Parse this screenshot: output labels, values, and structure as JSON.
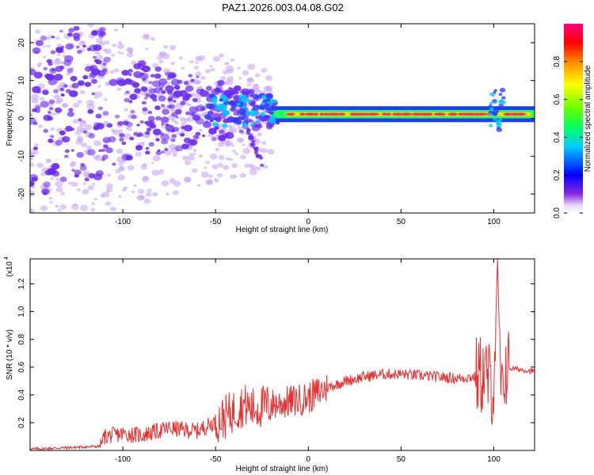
{
  "title": "PAZ1.2026.003.04.08.G02",
  "colors": {
    "spectrogram_dots": "#6a2bf0",
    "spectrogram_light": "#c8a8f5",
    "snr_line": "#e83030"
  },
  "colorbar": {
    "label": "Normalized spectral amplitude",
    "ticks": [
      "0.0",
      "0.2",
      "0.4",
      "0.6",
      "0.8"
    ],
    "tick_values": [
      0.0,
      0.2,
      0.4,
      0.6,
      0.8
    ],
    "range": [
      0,
      1
    ],
    "colormap": "rainbow (purple-blue-cyan-green-yellow-red-magenta)"
  },
  "chart_data": [
    {
      "type": "heatmap",
      "xlabel": "Height of straight line (km)",
      "ylabel": "Frequency (Hz)",
      "xlim": [
        -150,
        122
      ],
      "ylim": [
        -25,
        25
      ],
      "xticks": [
        -100,
        -50,
        0,
        50,
        100
      ],
      "xtick_labels": [
        "-100",
        "-50",
        "0",
        "50",
        "100"
      ],
      "yticks": [
        -20,
        -10,
        0,
        10,
        20
      ],
      "ytick_labels": [
        "-20",
        "-10",
        "0",
        "10",
        "20"
      ],
      "features": [
        {
          "x_range": [
            -150,
            -110
          ],
          "freq_range": [
            -25,
            25
          ],
          "amplitude": 0.05
        },
        {
          "x_range": [
            -110,
            -20
          ],
          "freq_range": [
            -12,
            15
          ],
          "amplitude": 0.1
        },
        {
          "x_range": [
            -55,
            -20
          ],
          "freq_center": 2,
          "amplitude": 0.25
        },
        {
          "x_range": [
            -20,
            122
          ],
          "freq_center": 1,
          "amplitude": 0.95
        },
        {
          "x_range": [
            98,
            106
          ],
          "freq_range": [
            -3,
            8
          ],
          "amplitude": 0.3
        }
      ]
    },
    {
      "type": "line",
      "xlabel": "Height of straight line (km)",
      "ylabel": "SNR (10 * v/v)",
      "y_multiplier": "(x10",
      "y_multiplier_exp": "4",
      "xlim": [
        -150,
        122
      ],
      "ylim": [
        0,
        1.38
      ],
      "xticks": [
        -100,
        -50,
        0,
        50,
        100
      ],
      "xtick_labels": [
        "-100",
        "-50",
        "0",
        "50",
        "100"
      ],
      "yticks": [
        0.2,
        0.4,
        0.6,
        0.8,
        1.0,
        1.2
      ],
      "ytick_labels": [
        "0.2",
        "0.4",
        "0.6",
        "0.8",
        "1.0",
        "1.2"
      ],
      "series": [
        {
          "x": [
            -150,
            -130,
            -112,
            -110,
            -100,
            -90,
            -75,
            -60,
            -45,
            -35,
            -30,
            -20,
            -10,
            0,
            10,
            20,
            30,
            40,
            50,
            60,
            70,
            80,
            90,
            95,
            100,
            102,
            104,
            106,
            110,
            122
          ],
          "values": [
            0.01,
            0.02,
            0.03,
            0.1,
            0.12,
            0.11,
            0.16,
            0.14,
            0.24,
            0.33,
            0.3,
            0.33,
            0.35,
            0.38,
            0.45,
            0.5,
            0.53,
            0.55,
            0.55,
            0.54,
            0.53,
            0.52,
            0.53,
            0.55,
            0.45,
            1.38,
            0.3,
            0.6,
            0.59,
            0.57
          ]
        }
      ]
    }
  ]
}
